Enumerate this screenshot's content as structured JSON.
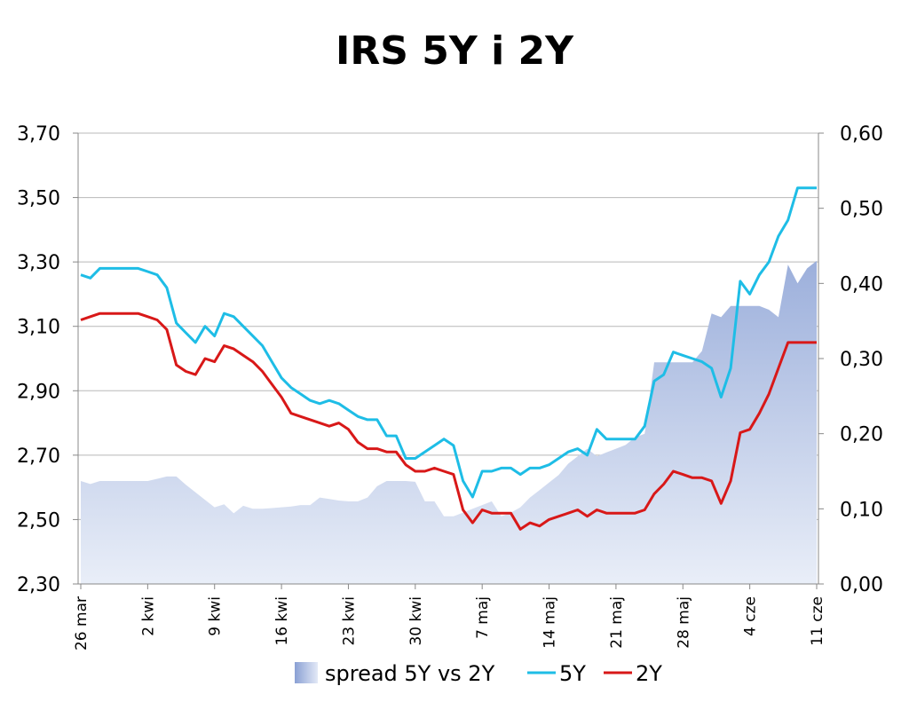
{
  "chart_data": {
    "type": "line",
    "title": "IRS 5Y i 2Y",
    "x_tick_labels": [
      "26 mar",
      "2 kwi",
      "9 kwi",
      "16 kwi",
      "23 kwi",
      "30 kwi",
      "7 maj",
      "14 maj",
      "21 maj",
      "28 maj",
      "4 cze",
      "11 cze"
    ],
    "y_left": {
      "min": 2.3,
      "max": 3.7,
      "ticks": [
        "2,30",
        "2,50",
        "2,70",
        "2,90",
        "3,10",
        "3,30",
        "3,50",
        "3,70"
      ]
    },
    "y_right": {
      "min": 0.0,
      "max": 0.6,
      "ticks": [
        "0,00",
        "0,10",
        "0,20",
        "0,30",
        "0,40",
        "0,50",
        "0,60"
      ]
    },
    "x_days": {
      "first_label": "26 mar",
      "last_label": "11 cze",
      "total_days": 77
    },
    "grid": "horizontal",
    "legend_position": "bottom",
    "colors": {
      "5Y": "#1ebde6",
      "2Y": "#d81818",
      "spread_top": "#93a8d8",
      "spread_bottom": "#e9eef8"
    },
    "series": [
      {
        "name": "spread 5Y vs 2Y",
        "axis": "right",
        "kind": "area",
        "x": [
          0,
          1,
          2,
          3,
          4,
          5,
          6,
          7,
          8,
          9,
          10,
          11,
          12,
          13,
          14,
          15,
          16,
          17,
          18,
          19,
          20,
          21,
          22,
          23,
          24,
          25,
          26,
          27,
          28,
          29,
          30,
          31,
          32,
          33,
          34,
          35,
          36,
          37,
          38,
          39,
          40,
          41,
          42,
          43,
          44,
          45,
          46,
          47,
          48,
          49,
          50,
          51,
          52,
          53,
          54,
          55,
          56,
          57,
          58,
          59,
          60,
          61,
          62,
          63,
          64,
          65,
          66,
          67,
          68,
          69,
          70,
          71,
          72,
          73,
          74,
          75,
          76,
          77
        ],
        "values": [
          0.137,
          0.133,
          0.137,
          0.137,
          0.137,
          0.137,
          0.137,
          0.137,
          0.14,
          0.143,
          0.143,
          0.132,
          0.122,
          0.112,
          0.102,
          0.106,
          0.094,
          0.104,
          0.1,
          0.1,
          0.101,
          0.102,
          0.103,
          0.105,
          0.105,
          0.115,
          0.113,
          0.111,
          0.11,
          0.11,
          0.115,
          0.13,
          0.137,
          0.137,
          0.137,
          0.136,
          0.11,
          0.11,
          0.09,
          0.09,
          0.095,
          0.1,
          0.105,
          0.11,
          0.09,
          0.095,
          0.102,
          0.115,
          0.125,
          0.135,
          0.145,
          0.16,
          0.17,
          0.18,
          0.17,
          0.175,
          0.18,
          0.185,
          0.195,
          0.2,
          0.295,
          0.295,
          0.295,
          0.295,
          0.295,
          0.31,
          0.36,
          0.355,
          0.37,
          0.37,
          0.37,
          0.37,
          0.365,
          0.355,
          0.425,
          0.4,
          0.42,
          0.43
        ],
        "right_edge_value": 0.48
      },
      {
        "name": "5Y",
        "axis": "left",
        "kind": "line",
        "x": [
          0,
          1,
          2,
          3,
          4,
          5,
          6,
          7,
          8,
          9,
          10,
          11,
          12,
          13,
          14,
          15,
          16,
          17,
          18,
          19,
          20,
          21,
          22,
          23,
          24,
          25,
          26,
          27,
          28,
          29,
          30,
          31,
          32,
          33,
          34,
          35,
          36,
          37,
          38,
          39,
          40,
          41,
          42,
          43,
          44,
          45,
          46,
          47,
          48,
          49,
          50,
          51,
          52,
          53,
          54,
          55,
          56,
          57,
          58,
          59,
          60,
          61,
          62,
          63,
          64,
          65,
          66,
          67,
          68,
          69,
          70,
          71,
          72,
          73,
          74,
          75,
          76,
          77
        ],
        "values": [
          3.26,
          3.25,
          3.28,
          3.28,
          3.28,
          3.28,
          3.28,
          3.27,
          3.26,
          3.22,
          3.11,
          3.08,
          3.05,
          3.1,
          3.07,
          3.14,
          3.13,
          3.1,
          3.07,
          3.04,
          2.99,
          2.94,
          2.91,
          2.89,
          2.87,
          2.86,
          2.87,
          2.86,
          2.84,
          2.82,
          2.81,
          2.81,
          2.76,
          2.76,
          2.69,
          2.69,
          2.71,
          2.73,
          2.75,
          2.73,
          2.62,
          2.57,
          2.65,
          2.65,
          2.66,
          2.66,
          2.64,
          2.66,
          2.66,
          2.67,
          2.69,
          2.71,
          2.72,
          2.7,
          2.78,
          2.75,
          2.75,
          2.75,
          2.75,
          2.79,
          2.93,
          2.95,
          3.02,
          3.01,
          3.0,
          2.99,
          2.97,
          2.88,
          2.97,
          3.24,
          3.2,
          3.26,
          3.3,
          3.38,
          3.43,
          3.53,
          3.53,
          3.53
        ]
      },
      {
        "name": "2Y",
        "axis": "left",
        "kind": "line",
        "x": [
          0,
          1,
          2,
          3,
          4,
          5,
          6,
          7,
          8,
          9,
          10,
          11,
          12,
          13,
          14,
          15,
          16,
          17,
          18,
          19,
          20,
          21,
          22,
          23,
          24,
          25,
          26,
          27,
          28,
          29,
          30,
          31,
          32,
          33,
          34,
          35,
          36,
          37,
          38,
          39,
          40,
          41,
          42,
          43,
          44,
          45,
          46,
          47,
          48,
          49,
          50,
          51,
          52,
          53,
          54,
          55,
          56,
          57,
          58,
          59,
          60,
          61,
          62,
          63,
          64,
          65,
          66,
          67,
          68,
          69,
          70,
          71,
          72,
          73,
          74,
          75,
          76,
          77
        ],
        "values": [
          3.12,
          3.13,
          3.14,
          3.14,
          3.14,
          3.14,
          3.14,
          3.13,
          3.12,
          3.09,
          2.98,
          2.96,
          2.95,
          3.0,
          2.99,
          3.04,
          3.03,
          3.01,
          2.99,
          2.96,
          2.92,
          2.88,
          2.83,
          2.82,
          2.81,
          2.8,
          2.79,
          2.8,
          2.78,
          2.74,
          2.72,
          2.72,
          2.71,
          2.71,
          2.67,
          2.65,
          2.65,
          2.66,
          2.65,
          2.64,
          2.53,
          2.49,
          2.53,
          2.52,
          2.52,
          2.52,
          2.47,
          2.49,
          2.48,
          2.5,
          2.51,
          2.52,
          2.53,
          2.51,
          2.53,
          2.52,
          2.52,
          2.52,
          2.52,
          2.53,
          2.58,
          2.61,
          2.65,
          2.64,
          2.63,
          2.63,
          2.62,
          2.55,
          2.62,
          2.77,
          2.78,
          2.83,
          2.89,
          2.97,
          3.05,
          3.05,
          3.05,
          3.05
        ]
      }
    ]
  },
  "legend": {
    "items": [
      {
        "label": "spread 5Y vs 2Y"
      },
      {
        "label": "5Y"
      },
      {
        "label": "2Y"
      }
    ]
  }
}
